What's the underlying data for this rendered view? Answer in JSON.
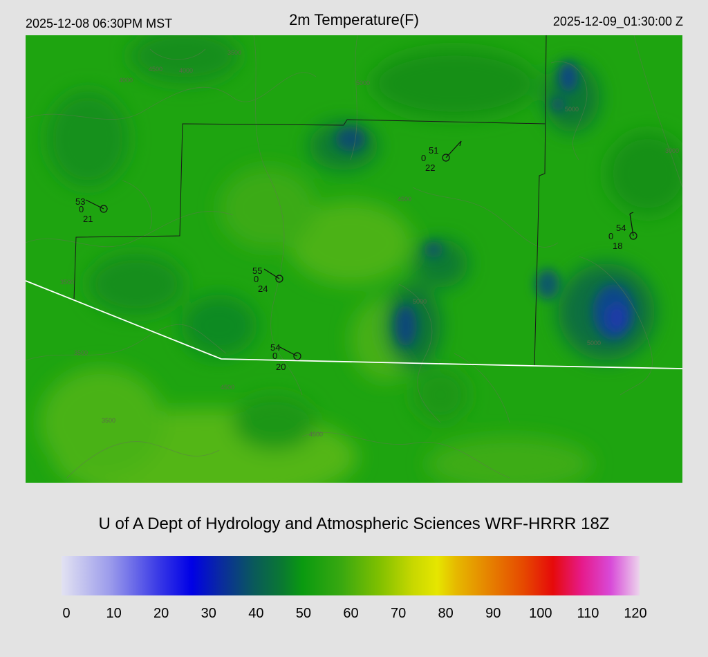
{
  "header": {
    "local_time": "2025-12-08 06:30PM MST",
    "title": "2m Temperature(F)",
    "utc_time": "2025-12-09_01:30:00 Z"
  },
  "credit": "U of A Dept of Hydrology and Atmospheric Sciences WRF-HRRR 18Z",
  "colorbar": {
    "ticks": [
      "0",
      "10",
      "20",
      "30",
      "40",
      "50",
      "60",
      "70",
      "80",
      "90",
      "100",
      "110",
      "120"
    ],
    "colors": [
      {
        "value": 0,
        "color": "#e2e2f2"
      },
      {
        "value": 10,
        "color": "#9c9ceb"
      },
      {
        "value": 20,
        "color": "#3a3ae6"
      },
      {
        "value": 27,
        "color": "#0000e6"
      },
      {
        "value": 33,
        "color": "#0a2aa0"
      },
      {
        "value": 40,
        "color": "#0a5a5a"
      },
      {
        "value": 46,
        "color": "#0a7a30"
      },
      {
        "value": 50,
        "color": "#0a9a10"
      },
      {
        "value": 58,
        "color": "#38a810"
      },
      {
        "value": 66,
        "color": "#80c000"
      },
      {
        "value": 73,
        "color": "#c8d800"
      },
      {
        "value": 78,
        "color": "#e6e600"
      },
      {
        "value": 82,
        "color": "#e6b800"
      },
      {
        "value": 90,
        "color": "#e67800"
      },
      {
        "value": 96,
        "color": "#e64800"
      },
      {
        "value": 102,
        "color": "#e60a0a"
      },
      {
        "value": 108,
        "color": "#e61a8a"
      },
      {
        "value": 114,
        "color": "#d84ad8"
      },
      {
        "value": 120,
        "color": "#ecd4ec"
      }
    ]
  },
  "stations": [
    {
      "temp": "53",
      "cloud": "0",
      "dewpoint": "21"
    },
    {
      "temp": "51",
      "cloud": "0",
      "dewpoint": "22"
    },
    {
      "temp": "55",
      "cloud": "0",
      "dewpoint": "24"
    },
    {
      "temp": "54",
      "cloud": "0",
      "dewpoint": "20"
    },
    {
      "temp": "54",
      "cloud": "0",
      "dewpoint": "18"
    }
  ],
  "contour_labels": [
    "4500",
    "4000",
    "3500",
    "4000",
    "5000",
    "4500",
    "3500",
    "3500",
    "4500",
    "5000",
    "5000",
    "3000",
    "4500",
    "5000",
    "3500"
  ]
}
